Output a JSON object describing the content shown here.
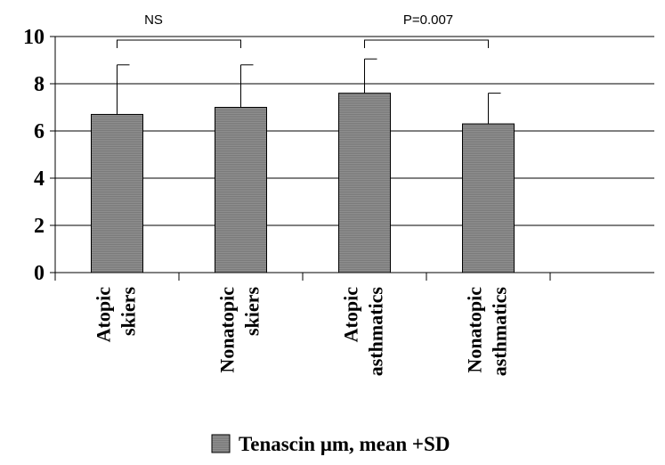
{
  "chart_data": {
    "type": "bar",
    "categories": [
      [
        "Atopic",
        "skiers"
      ],
      [
        "Nonatopic",
        "skiers"
      ],
      [
        "Atopic",
        "asthmatics"
      ],
      [
        "Nonatopic",
        "asthmatics"
      ]
    ],
    "series": [
      {
        "name": "Tenascin μm, mean +SD",
        "values": [
          6.7,
          7.0,
          7.6,
          6.3
        ],
        "sd": [
          2.1,
          1.8,
          1.45,
          1.3
        ],
        "color": "#8c8c8c"
      }
    ],
    "ylim": [
      0,
      10
    ],
    "yticks": [
      "0",
      "2",
      "4",
      "6",
      "8",
      "10"
    ],
    "grid": true,
    "legend_position": "bottom",
    "annotations": [
      {
        "text": "NS",
        "between": [
          0,
          1
        ]
      },
      {
        "text": "P=0.007",
        "between": [
          2,
          3
        ]
      }
    ],
    "title": "",
    "xlabel": "",
    "ylabel": ""
  }
}
